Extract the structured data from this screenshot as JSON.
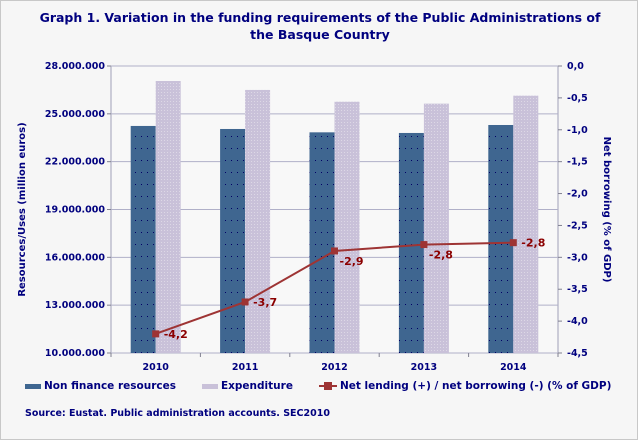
{
  "title_line1": "Graph 1. Variation in the funding requirements of the Public Administrations of",
  "title_line2": "the Basque Country",
  "source": "Source: Eustat. Public administration accounts. SEC2010",
  "chart_data": {
    "type": "bar+line",
    "categories": [
      "2010",
      "2011",
      "2012",
      "2013",
      "2014"
    ],
    "ylabel": "Resources/Uses (million euros)",
    "y2label": "Net borrowing (% of GDP)",
    "ylim": [
      10000000,
      28000000
    ],
    "y_ticks": [
      "10.000.000",
      "13.000.000",
      "16.000.000",
      "19.000.000",
      "22.000.000",
      "25.000.000",
      "28.000.000"
    ],
    "y2lim": [
      -4.5,
      0
    ],
    "y2_ticks": [
      "-4,5",
      "-4,0",
      "-3,5",
      "-3,0",
      "-2,5",
      "-2,0",
      "-1,5",
      "-1,0",
      "-0,5",
      "0,0"
    ],
    "grid": true,
    "legend_placement": "bottom",
    "series": [
      {
        "name": "Non finance resources",
        "type": "bar",
        "axis": "left",
        "color": "#3f6690",
        "values": [
          24240000,
          24050000,
          23840000,
          23800000,
          24300000
        ]
      },
      {
        "name": "Expenditure",
        "type": "bar",
        "axis": "left",
        "color": "#c9c1d9",
        "values": [
          27060000,
          26500000,
          25760000,
          25640000,
          26140000
        ]
      },
      {
        "name": "Net lending (+) / net borrowing (-) (% of GDP)",
        "type": "line",
        "axis": "right",
        "color": "#9e3434",
        "values": [
          -4.2,
          -3.7,
          -2.9,
          -2.8,
          -2.77
        ],
        "labels": [
          "-4,2",
          "-3,7",
          "-2,9",
          "-2,8",
          "-2,8"
        ]
      }
    ]
  }
}
